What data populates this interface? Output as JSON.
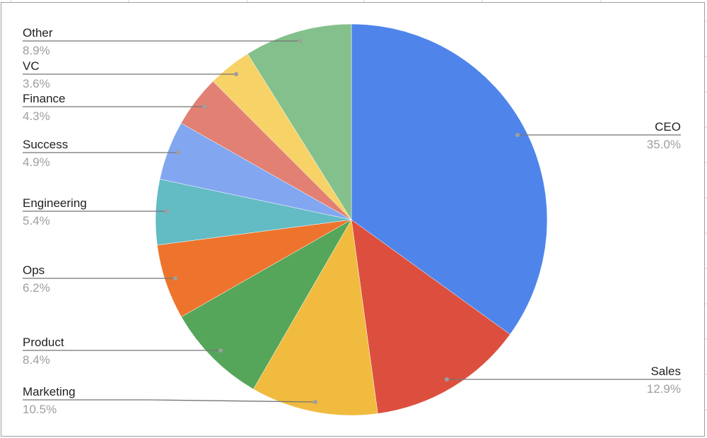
{
  "chart_data": {
    "type": "pie",
    "start_angle": "12 o'clock, clockwise",
    "legend": "none (leader-line labels)",
    "slices": [
      {
        "label": "CEO",
        "value": 35.0,
        "pct_label": "35.0%",
        "color": "#4f85ea"
      },
      {
        "label": "Sales",
        "value": 12.9,
        "pct_label": "12.9%",
        "color": "#dc4f3e"
      },
      {
        "label": "Marketing",
        "value": 10.5,
        "pct_label": "10.5%",
        "color": "#f1bb3f"
      },
      {
        "label": "Product",
        "value": 8.4,
        "pct_label": "8.4%",
        "color": "#55a65a"
      },
      {
        "label": "Ops",
        "value": 6.2,
        "pct_label": "6.2%",
        "color": "#ee742d"
      },
      {
        "label": "Engineering",
        "value": 5.4,
        "pct_label": "5.4%",
        "color": "#63bbc4"
      },
      {
        "label": "Success",
        "value": 4.9,
        "pct_label": "4.9%",
        "color": "#82a7f0"
      },
      {
        "label": "Finance",
        "value": 4.3,
        "pct_label": "4.3%",
        "color": "#e28073"
      },
      {
        "label": "VC",
        "value": 3.6,
        "pct_label": "3.6%",
        "color": "#f6d267"
      },
      {
        "label": "Other",
        "value": 8.9,
        "pct_label": "8.9%",
        "color": "#84c08c"
      }
    ]
  }
}
